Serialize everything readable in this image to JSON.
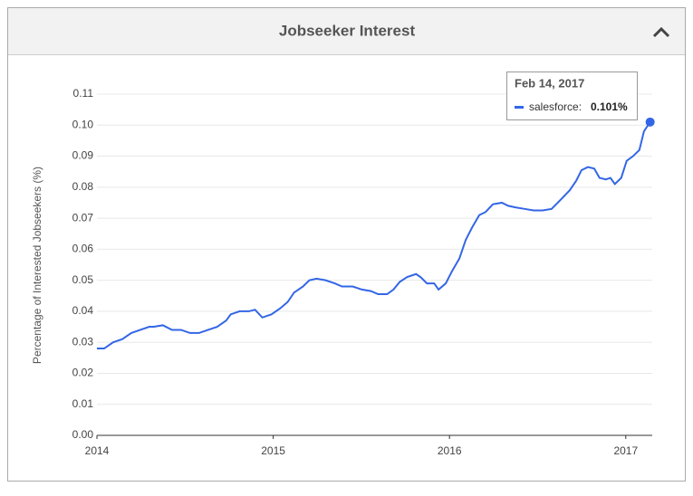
{
  "chart_data": {
    "type": "line",
    "title": "Jobseeker Interest",
    "y_label": "Percentage of Interested Jobseekers (%)",
    "color": "#3366e6",
    "grid": true,
    "x": [
      2014.0,
      2014.041,
      2014.092,
      2014.144,
      2014.195,
      2014.246,
      2014.297,
      2014.323,
      2014.374,
      2014.426,
      2014.477,
      2014.528,
      2014.579,
      2014.631,
      2014.682,
      2014.733,
      2014.759,
      2014.81,
      2014.862,
      2014.897,
      2014.938,
      2014.99,
      2015.041,
      2015.082,
      2015.118,
      2015.169,
      2015.205,
      2015.246,
      2015.297,
      2015.349,
      2015.39,
      2015.451,
      2015.503,
      2015.554,
      2015.595,
      2015.646,
      2015.682,
      2015.718,
      2015.759,
      2015.81,
      2015.836,
      2015.872,
      2015.913,
      2015.938,
      2015.979,
      2016.015,
      2016.056,
      2016.092,
      2016.128,
      2016.169,
      2016.205,
      2016.246,
      2016.297,
      2016.333,
      2016.374,
      2016.426,
      2016.477,
      2016.528,
      2016.579,
      2016.631,
      2016.682,
      2016.718,
      2016.749,
      2016.785,
      2016.821,
      2016.851,
      2016.887,
      2016.913,
      2016.938,
      2016.974,
      2017.005,
      2017.041,
      2017.077,
      2017.103,
      2017.138
    ],
    "values": [
      0.028,
      0.028,
      0.03,
      0.031,
      0.033,
      0.034,
      0.035,
      0.035,
      0.0355,
      0.034,
      0.034,
      0.033,
      0.033,
      0.034,
      0.035,
      0.037,
      0.039,
      0.04,
      0.04,
      0.0405,
      0.038,
      0.039,
      0.041,
      0.043,
      0.046,
      0.048,
      0.05,
      0.0505,
      0.05,
      0.049,
      0.048,
      0.048,
      0.047,
      0.0465,
      0.0455,
      0.0455,
      0.047,
      0.0495,
      0.051,
      0.052,
      0.051,
      0.049,
      0.049,
      0.047,
      0.049,
      0.053,
      0.057,
      0.063,
      0.067,
      0.071,
      0.072,
      0.0745,
      0.075,
      0.074,
      0.0735,
      0.073,
      0.0725,
      0.0725,
      0.073,
      0.076,
      0.079,
      0.082,
      0.0855,
      0.0865,
      0.086,
      0.083,
      0.0825,
      0.083,
      0.081,
      0.083,
      0.0885,
      0.09,
      0.092,
      0.098,
      0.101
    ],
    "xlim": [
      2014,
      2017.15
    ],
    "xticks": [
      2014,
      2015,
      2016,
      2017
    ],
    "ylim": [
      0,
      0.11
    ],
    "yticks": [
      {
        "value": 0,
        "label": "0.00"
      },
      0.01,
      0.02,
      0.03,
      0.04,
      0.05,
      0.06,
      0.07,
      0.08,
      0.09,
      {
        "value": 0.1,
        "label": "0.10"
      },
      0.11
    ],
    "tooltip": {
      "title": "Feb 14, 2017",
      "series_label": "salesforce:",
      "value": 0.101,
      "value_label": "0.101%"
    }
  }
}
